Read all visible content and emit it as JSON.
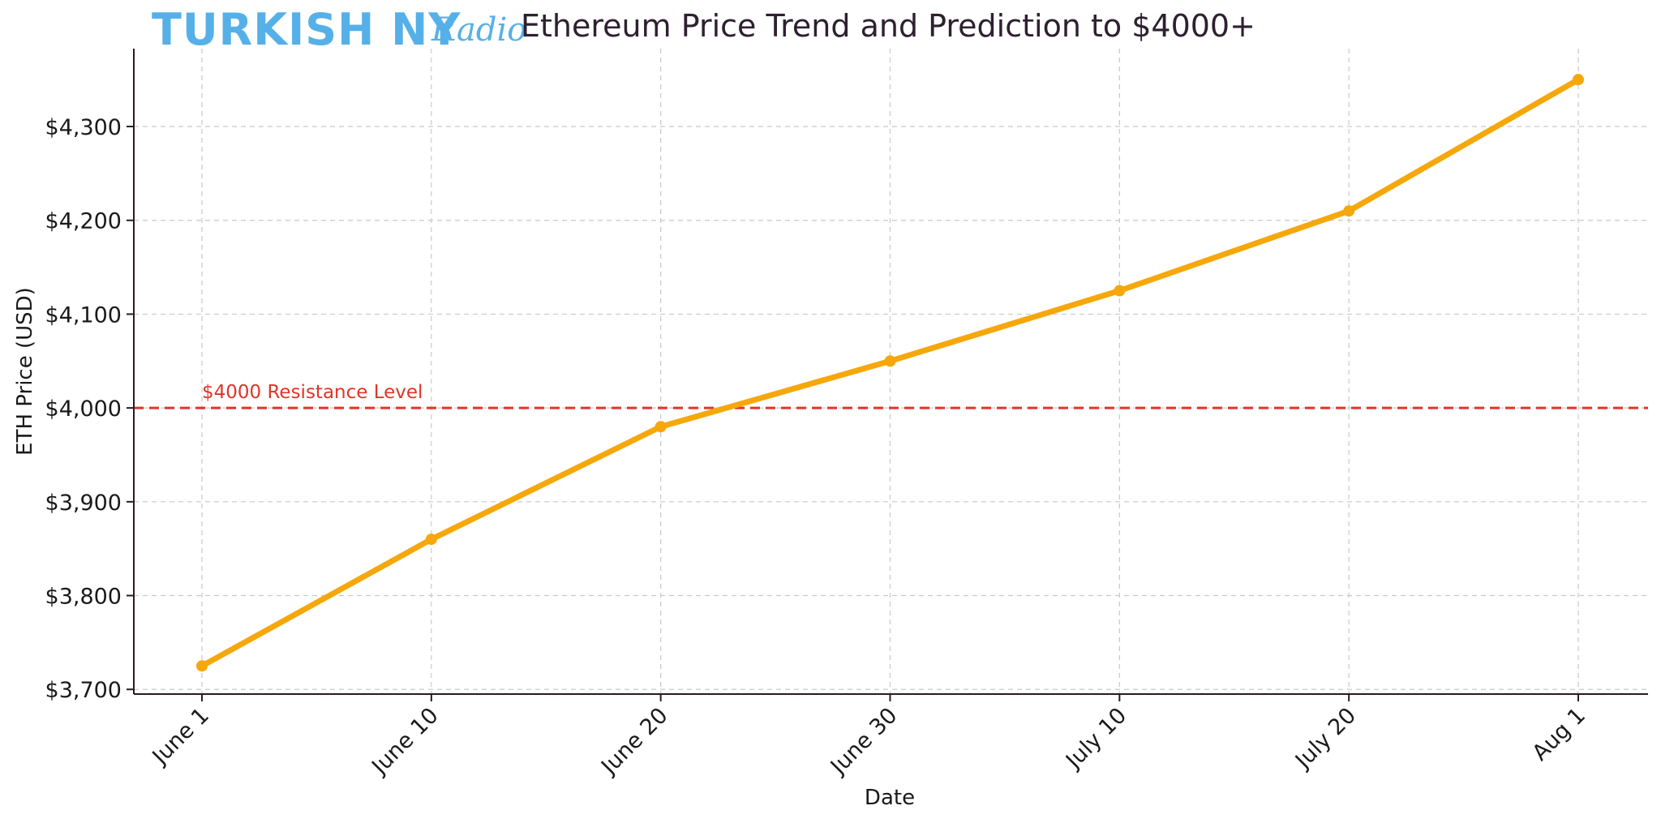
{
  "header": {
    "logo_main": "TURKISH NY",
    "logo_script": "Radio",
    "title": "Ethereum Price Trend and Prediction to $4000+"
  },
  "colors": {
    "line": "#f6a70a",
    "resistance": "#e0342a",
    "logo": "#56b0e8",
    "title": "#2e2030",
    "grid": "#c9c9c9",
    "axis": "#2a1a22"
  },
  "chart_data": {
    "type": "line",
    "title": "Ethereum Price Trend and Prediction to $4000+",
    "xlabel": "Date",
    "ylabel": "ETH Price (USD)",
    "categories": [
      "June 1",
      "June 10",
      "June 20",
      "June 30",
      "July 10",
      "July 20",
      "Aug 1"
    ],
    "series": [
      {
        "values": [
          3725,
          3860,
          3980,
          4050,
          4125,
          4210,
          4350
        ]
      }
    ],
    "yticks": [
      3700,
      3800,
      3900,
      4000,
      4100,
      4200,
      4300
    ],
    "ytick_labels": [
      "$3,700",
      "$3,800",
      "$3,900",
      "$4,000",
      "$4,100",
      "$4,200",
      "$4,300"
    ],
    "ylim": [
      3695,
      4383
    ],
    "grid": true,
    "legend": "none",
    "reference_line": {
      "value": 4000,
      "label": "$4000 Resistance Level",
      "style": "dashed"
    }
  }
}
